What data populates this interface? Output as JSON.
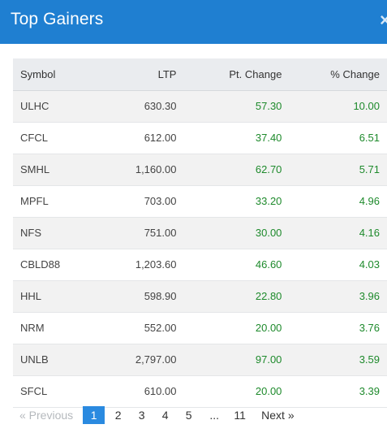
{
  "header": {
    "title": "Top Gainers",
    "close_label": "×"
  },
  "table": {
    "columns": [
      "Symbol",
      "LTP",
      "Pt. Change",
      "% Change"
    ],
    "rows": [
      {
        "symbol": "ULHC",
        "ltp": "630.30",
        "pt_change": "57.30",
        "pct_change": "10.00"
      },
      {
        "symbol": "CFCL",
        "ltp": "612.00",
        "pt_change": "37.40",
        "pct_change": "6.51"
      },
      {
        "symbol": "SMHL",
        "ltp": "1,160.00",
        "pt_change": "62.70",
        "pct_change": "5.71"
      },
      {
        "symbol": "MPFL",
        "ltp": "703.00",
        "pt_change": "33.20",
        "pct_change": "4.96"
      },
      {
        "symbol": "NFS",
        "ltp": "751.00",
        "pt_change": "30.00",
        "pct_change": "4.16"
      },
      {
        "symbol": "CBLD88",
        "ltp": "1,203.60",
        "pt_change": "46.60",
        "pct_change": "4.03"
      },
      {
        "symbol": "HHL",
        "ltp": "598.90",
        "pt_change": "22.80",
        "pct_change": "3.96"
      },
      {
        "symbol": "NRM",
        "ltp": "552.00",
        "pt_change": "20.00",
        "pct_change": "3.76"
      },
      {
        "symbol": "UNLB",
        "ltp": "2,797.00",
        "pt_change": "97.00",
        "pct_change": "3.59"
      },
      {
        "symbol": "SFCL",
        "ltp": "610.00",
        "pt_change": "20.00",
        "pct_change": "3.39"
      }
    ]
  },
  "pagination": {
    "previous_label": "« Previous",
    "pages": [
      "1",
      "2",
      "3",
      "4",
      "5"
    ],
    "ellipsis": "...",
    "last_page": "11",
    "next_label": "Next »",
    "current_page": "1"
  },
  "colors": {
    "header_bg": "#1f7fd1",
    "positive": "#1e8a2c",
    "active_page": "#2a8ae0"
  }
}
